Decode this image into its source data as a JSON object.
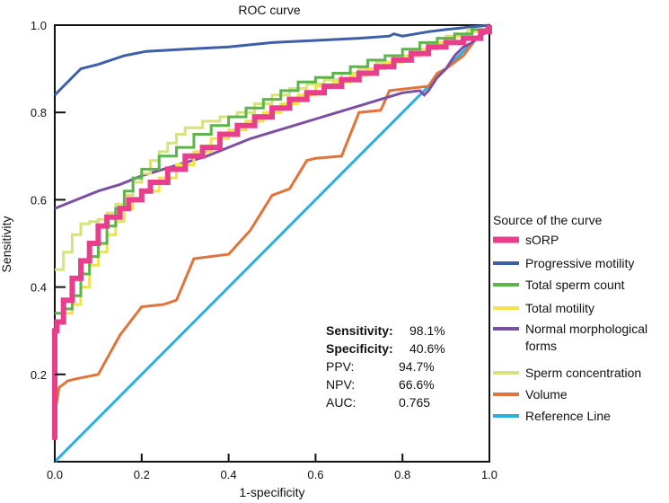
{
  "chart_data": {
    "type": "line",
    "title": "ROC curve",
    "xlabel": "1-specificity",
    "ylabel": "Sensitivity",
    "xlim": [
      0,
      1
    ],
    "ylim": [
      0,
      1
    ],
    "xticks": [
      "0.0",
      "0.2",
      "0.4",
      "0.6",
      "0.8",
      "1.0"
    ],
    "yticks": [
      "0.2",
      "0.4",
      "0.6",
      "0.8",
      "1.0"
    ],
    "legend_title": "Source of the curve",
    "legend_position": "right",
    "series": [
      {
        "name": "sORP",
        "color": "#e83e8c",
        "width": 6,
        "step": true,
        "points": [
          [
            0,
            0.05
          ],
          [
            0,
            0.2
          ],
          [
            0,
            0.3
          ],
          [
            0.005,
            0.31
          ],
          [
            0.005,
            0.32
          ],
          [
            0.02,
            0.33
          ],
          [
            0.02,
            0.37
          ],
          [
            0.04,
            0.38
          ],
          [
            0.04,
            0.42
          ],
          [
            0.06,
            0.43
          ],
          [
            0.06,
            0.46
          ],
          [
            0.08,
            0.48
          ],
          [
            0.08,
            0.5
          ],
          [
            0.1,
            0.52
          ],
          [
            0.1,
            0.54
          ],
          [
            0.12,
            0.55
          ],
          [
            0.12,
            0.56
          ],
          [
            0.15,
            0.58
          ],
          [
            0.17,
            0.6
          ],
          [
            0.2,
            0.62
          ],
          [
            0.22,
            0.64
          ],
          [
            0.26,
            0.67
          ],
          [
            0.3,
            0.7
          ],
          [
            0.34,
            0.72
          ],
          [
            0.38,
            0.75
          ],
          [
            0.42,
            0.77
          ],
          [
            0.46,
            0.79
          ],
          [
            0.5,
            0.81
          ],
          [
            0.54,
            0.83
          ],
          [
            0.58,
            0.845
          ],
          [
            0.62,
            0.86
          ],
          [
            0.66,
            0.875
          ],
          [
            0.7,
            0.89
          ],
          [
            0.74,
            0.905
          ],
          [
            0.78,
            0.92
          ],
          [
            0.82,
            0.935
          ],
          [
            0.86,
            0.95
          ],
          [
            0.9,
            0.96
          ],
          [
            0.94,
            0.97
          ],
          [
            0.98,
            0.985
          ],
          [
            1,
            1
          ]
        ]
      },
      {
        "name": "Progressive motility",
        "color": "#3d5ea8",
        "width": 3,
        "points": [
          [
            0,
            0.84
          ],
          [
            0.02,
            0.86
          ],
          [
            0.06,
            0.9
          ],
          [
            0.1,
            0.91
          ],
          [
            0.16,
            0.93
          ],
          [
            0.21,
            0.94
          ],
          [
            0.3,
            0.945
          ],
          [
            0.4,
            0.95
          ],
          [
            0.5,
            0.96
          ],
          [
            0.6,
            0.965
          ],
          [
            0.7,
            0.97
          ],
          [
            0.77,
            0.975
          ],
          [
            0.78,
            0.98
          ],
          [
            0.8,
            0.975
          ],
          [
            0.86,
            0.985
          ],
          [
            0.9,
            0.99
          ],
          [
            0.95,
            0.995
          ],
          [
            1,
            1
          ]
        ]
      },
      {
        "name": "Total sperm count",
        "color": "#5bb54a",
        "width": 3,
        "step": true,
        "points": [
          [
            0,
            0.34
          ],
          [
            0.02,
            0.35
          ],
          [
            0.04,
            0.38
          ],
          [
            0.06,
            0.43
          ],
          [
            0.08,
            0.47
          ],
          [
            0.1,
            0.5
          ],
          [
            0.12,
            0.54
          ],
          [
            0.14,
            0.58
          ],
          [
            0.16,
            0.62
          ],
          [
            0.18,
            0.65
          ],
          [
            0.2,
            0.67
          ],
          [
            0.24,
            0.7
          ],
          [
            0.28,
            0.72
          ],
          [
            0.32,
            0.75
          ],
          [
            0.36,
            0.77
          ],
          [
            0.4,
            0.79
          ],
          [
            0.44,
            0.81
          ],
          [
            0.48,
            0.83
          ],
          [
            0.52,
            0.85
          ],
          [
            0.56,
            0.87
          ],
          [
            0.6,
            0.88
          ],
          [
            0.64,
            0.89
          ],
          [
            0.68,
            0.905
          ],
          [
            0.72,
            0.92
          ],
          [
            0.76,
            0.93
          ],
          [
            0.8,
            0.945
          ],
          [
            0.84,
            0.96
          ],
          [
            0.88,
            0.97
          ],
          [
            0.92,
            0.98
          ],
          [
            0.96,
            0.99
          ],
          [
            1,
            1
          ]
        ]
      },
      {
        "name": "Total motility",
        "color": "#f2e34a",
        "width": 3,
        "step": true,
        "points": [
          [
            0,
            0.32
          ],
          [
            0.02,
            0.34
          ],
          [
            0.04,
            0.36
          ],
          [
            0.06,
            0.4
          ],
          [
            0.08,
            0.45
          ],
          [
            0.1,
            0.48
          ],
          [
            0.12,
            0.52
          ],
          [
            0.14,
            0.55
          ],
          [
            0.16,
            0.58
          ],
          [
            0.18,
            0.6
          ],
          [
            0.2,
            0.62
          ],
          [
            0.24,
            0.65
          ],
          [
            0.28,
            0.68
          ],
          [
            0.32,
            0.71
          ],
          [
            0.36,
            0.74
          ],
          [
            0.4,
            0.76
          ],
          [
            0.44,
            0.78
          ],
          [
            0.48,
            0.8
          ],
          [
            0.52,
            0.82
          ],
          [
            0.56,
            0.84
          ],
          [
            0.6,
            0.86
          ],
          [
            0.64,
            0.87
          ],
          [
            0.68,
            0.885
          ],
          [
            0.72,
            0.9
          ],
          [
            0.76,
            0.915
          ],
          [
            0.8,
            0.93
          ],
          [
            0.84,
            0.945
          ],
          [
            0.88,
            0.96
          ],
          [
            0.92,
            0.975
          ],
          [
            0.96,
            0.985
          ],
          [
            1,
            1
          ]
        ]
      },
      {
        "name": "Normal morphological forms",
        "color": "#7b4fa3",
        "width": 3,
        "points": [
          [
            0,
            0.58
          ],
          [
            0.05,
            0.6
          ],
          [
            0.1,
            0.62
          ],
          [
            0.15,
            0.635
          ],
          [
            0.2,
            0.655
          ],
          [
            0.25,
            0.67
          ],
          [
            0.3,
            0.685
          ],
          [
            0.35,
            0.7
          ],
          [
            0.4,
            0.72
          ],
          [
            0.45,
            0.74
          ],
          [
            0.5,
            0.755
          ],
          [
            0.55,
            0.77
          ],
          [
            0.6,
            0.785
          ],
          [
            0.65,
            0.8
          ],
          [
            0.7,
            0.815
          ],
          [
            0.75,
            0.83
          ],
          [
            0.8,
            0.845
          ],
          [
            0.84,
            0.85
          ],
          [
            0.85,
            0.84
          ],
          [
            0.86,
            0.85
          ],
          [
            0.88,
            0.88
          ],
          [
            0.9,
            0.9
          ],
          [
            0.92,
            0.93
          ],
          [
            0.94,
            0.95
          ],
          [
            0.96,
            0.96
          ],
          [
            1,
            0.99
          ]
        ]
      },
      {
        "name": "Sperm concentration",
        "color": "#d7e37a",
        "width": 3,
        "step": true,
        "points": [
          [
            0,
            0.44
          ],
          [
            0.02,
            0.48
          ],
          [
            0.04,
            0.52
          ],
          [
            0.06,
            0.545
          ],
          [
            0.08,
            0.55
          ],
          [
            0.1,
            0.555
          ],
          [
            0.12,
            0.57
          ],
          [
            0.14,
            0.59
          ],
          [
            0.16,
            0.61
          ],
          [
            0.18,
            0.64
          ],
          [
            0.2,
            0.66
          ],
          [
            0.22,
            0.69
          ],
          [
            0.24,
            0.71
          ],
          [
            0.26,
            0.73
          ],
          [
            0.28,
            0.75
          ],
          [
            0.3,
            0.765
          ],
          [
            0.34,
            0.78
          ],
          [
            0.38,
            0.79
          ],
          [
            0.42,
            0.8
          ],
          [
            0.46,
            0.82
          ],
          [
            0.5,
            0.84
          ],
          [
            0.54,
            0.855
          ],
          [
            0.58,
            0.865
          ],
          [
            0.62,
            0.875
          ],
          [
            0.66,
            0.89
          ],
          [
            0.7,
            0.9
          ],
          [
            0.74,
            0.915
          ],
          [
            0.78,
            0.93
          ],
          [
            0.82,
            0.945
          ],
          [
            0.86,
            0.96
          ],
          [
            0.9,
            0.975
          ],
          [
            0.95,
            0.99
          ],
          [
            1,
            1
          ]
        ]
      },
      {
        "name": "Volume",
        "color": "#e0743a",
        "width": 3,
        "points": [
          [
            0,
            0.11
          ],
          [
            0.01,
            0.17
          ],
          [
            0.03,
            0.185
          ],
          [
            0.05,
            0.19
          ],
          [
            0.1,
            0.2
          ],
          [
            0.15,
            0.29
          ],
          [
            0.2,
            0.355
          ],
          [
            0.25,
            0.36
          ],
          [
            0.28,
            0.37
          ],
          [
            0.32,
            0.465
          ],
          [
            0.4,
            0.475
          ],
          [
            0.45,
            0.53
          ],
          [
            0.5,
            0.61
          ],
          [
            0.54,
            0.625
          ],
          [
            0.58,
            0.69
          ],
          [
            0.6,
            0.695
          ],
          [
            0.66,
            0.7
          ],
          [
            0.7,
            0.8
          ],
          [
            0.75,
            0.805
          ],
          [
            0.77,
            0.85
          ],
          [
            0.86,
            0.86
          ],
          [
            0.88,
            0.89
          ],
          [
            0.9,
            0.9
          ],
          [
            0.94,
            0.93
          ],
          [
            0.97,
            0.97
          ],
          [
            1,
            1
          ]
        ]
      },
      {
        "name": "Reference Line",
        "color": "#2baee0",
        "width": 3,
        "points": [
          [
            0,
            0
          ],
          [
            1,
            1
          ]
        ]
      }
    ],
    "stats": [
      {
        "label": "Sensitivity:",
        "value": "98.1%",
        "bold": true
      },
      {
        "label": "Specificity:",
        "value": "40.6%",
        "bold": true
      },
      {
        "label": "PPV:",
        "value": "94.7%",
        "bold": false
      },
      {
        "label": "NPV:",
        "value": "66.6%",
        "bold": false
      },
      {
        "label": "AUC:",
        "value": "0.765",
        "bold": false
      }
    ]
  }
}
